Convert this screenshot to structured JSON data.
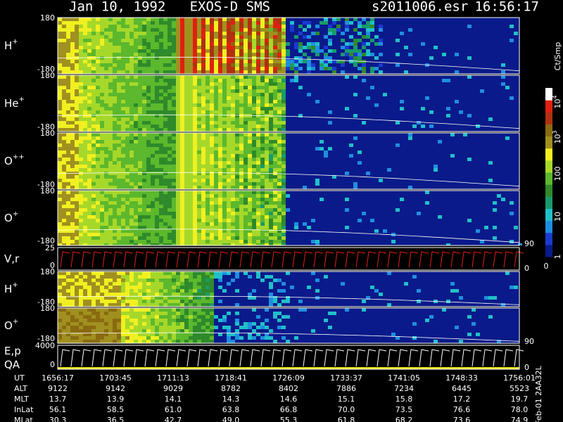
{
  "header": {
    "title": "Jan 10, 1992   EXOS-D SMS",
    "file": "s2011006.esr",
    "time": "16:56:17"
  },
  "panels": [
    {
      "label": "H",
      "sup": "+",
      "ticks": [
        "180",
        "-180"
      ]
    },
    {
      "label": "He",
      "sup": "+",
      "ticks": [
        "180",
        "-180"
      ]
    },
    {
      "label": "O",
      "sup": "++",
      "ticks": [
        "180",
        "-180"
      ]
    },
    {
      "label": "O",
      "sup": "+",
      "ticks": [
        "180",
        "-180"
      ],
      "right": "90"
    },
    {
      "label": "V,r",
      "sup": "",
      "ticks": [
        "25",
        "0"
      ],
      "right": "0"
    },
    {
      "label": "H",
      "sup": "+",
      "ticks": [
        "180",
        "-180"
      ]
    },
    {
      "label": "O",
      "sup": "+",
      "ticks": [
        "180",
        "-180"
      ],
      "right": "90"
    },
    {
      "label": "E,p",
      "sup": "",
      "label2": "QA",
      "ticks": [
        "4000",
        "0"
      ],
      "right": "0"
    }
  ],
  "colorbar": {
    "unit": "Ct/Smp",
    "ticks": [
      {
        "base": "10",
        "exp": "4"
      },
      {
        "base": "10",
        "exp": "3"
      },
      {
        "base": "100"
      },
      {
        "base": "10"
      },
      {
        "base": "1"
      },
      {
        "base": "0"
      }
    ]
  },
  "table": {
    "rows": [
      [
        "UT",
        "1656:17",
        "1703:45",
        "1711:13",
        "1718:41",
        "1726:09",
        "1733:37",
        "1741:05",
        "1748:33",
        "1756:01"
      ],
      [
        "ALT",
        "9122",
        "9142",
        "9029",
        "8782",
        "8402",
        "7886",
        "7234",
        "6445",
        "5523"
      ],
      [
        "MLT",
        "13.7",
        "13.9",
        "14.1",
        "14.3",
        "14.6",
        "15.1",
        "15.8",
        "17.2",
        "19.7"
      ],
      [
        "InLat",
        "56.1",
        "58.5",
        "61.0",
        "63.8",
        "66.8",
        "70.0",
        "73.5",
        "76.6",
        "78.0"
      ],
      [
        "MLat",
        "30.3",
        "36.5",
        "42.7",
        "49.0",
        "55.3",
        "61.8",
        "68.2",
        "73.6",
        "74.9"
      ]
    ]
  },
  "footer": "Feb-01 2AA32L"
}
